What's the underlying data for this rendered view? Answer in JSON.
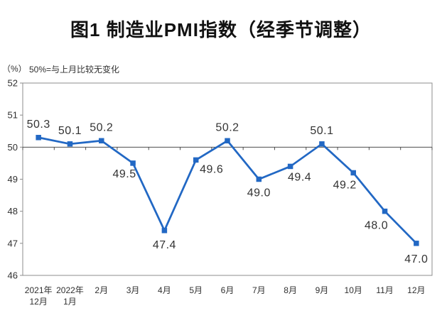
{
  "chart_data": {
    "type": "line",
    "title": "图1 制造业PMI指数（经季节调整）",
    "unit": "（%）",
    "note": "50%=与上月比较无变化",
    "categories": [
      [
        "2021年",
        "12月"
      ],
      [
        "2022年",
        "1月"
      ],
      [
        "2月"
      ],
      [
        "3月"
      ],
      [
        "4月"
      ],
      [
        "5月"
      ],
      [
        "6月"
      ],
      [
        "7月"
      ],
      [
        "8月"
      ],
      [
        "9月"
      ],
      [
        "10月"
      ],
      [
        "11月"
      ],
      [
        "12月"
      ]
    ],
    "values": [
      50.3,
      50.1,
      50.2,
      49.5,
      47.4,
      49.6,
      50.2,
      49.0,
      49.4,
      50.1,
      49.2,
      48.0,
      47.0
    ],
    "point_labels": [
      "50.3",
      "50.1",
      "50.2",
      "49.5",
      "47.4",
      "49.6",
      "50.2",
      "49.0",
      "49.4",
      "50.1",
      "49.2",
      "48.0",
      "47.0"
    ],
    "ylim": [
      46,
      52
    ],
    "y_ticks": [
      46,
      47,
      48,
      49,
      50,
      51,
      52
    ],
    "axis_cross_value": 50,
    "grid": false,
    "legend": "none",
    "marker": "square",
    "colors": {
      "line": "#2268C4",
      "category_axis": "#4D4D4D",
      "border": "#8C8C8C",
      "text": "#303030",
      "data_label": "#333333"
    }
  }
}
